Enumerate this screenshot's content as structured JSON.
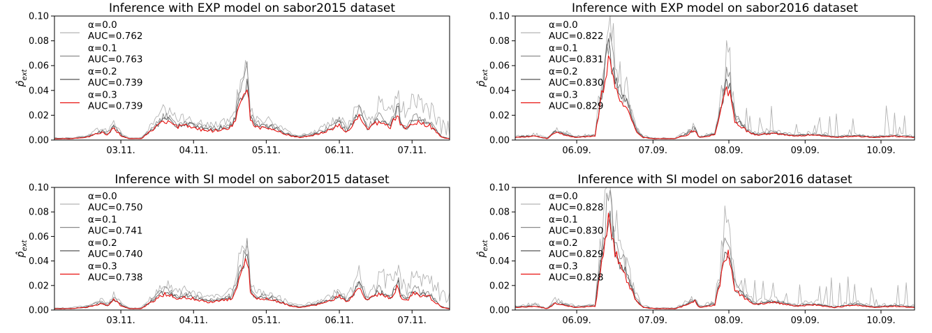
{
  "figure": {
    "palette": {
      "alpha0": "#b3b3b3",
      "alpha1": "#8c8c8c",
      "alpha2": "#555555",
      "alpha3": "#e8110f"
    }
  },
  "chart_data": [
    {
      "type": "line",
      "title": "Inference with EXP model on sabor2015 dataset",
      "ylabel": "p̂_ext",
      "ylim": [
        0,
        0.1
      ],
      "yticks": [
        "0.00",
        "0.02",
        "0.04",
        "0.06",
        "0.08",
        "0.10"
      ],
      "xtick_labels": [
        "03.11.",
        "04.11.",
        "05.11.",
        "06.11.",
        "07.11."
      ],
      "legend_position": "upper-left",
      "series": [
        {
          "label_alpha": "α=0.0",
          "label_auc": "AUC=0.762",
          "color": "#b3b3b3",
          "scale": 1.55,
          "noise": 0.35
        },
        {
          "label_alpha": "α=0.1",
          "label_auc": "AUC=0.763",
          "color": "#8c8c8c",
          "scale": 1.25,
          "noise": 0.22
        },
        {
          "label_alpha": "α=0.2",
          "label_auc": "AUC=0.739",
          "color": "#555555",
          "scale": 1.1,
          "noise": 0.12
        },
        {
          "label_alpha": "α=0.3",
          "label_auc": "AUC=0.739",
          "color": "#e8110f",
          "scale": 1.0,
          "noise": 0.0
        }
      ],
      "base_x": [
        0,
        0.04,
        0.08,
        0.12,
        0.135,
        0.15,
        0.17,
        0.19,
        0.22,
        0.265,
        0.28,
        0.31,
        0.34,
        0.37,
        0.4,
        0.45,
        0.49,
        0.495,
        0.51,
        0.55,
        0.58,
        0.6,
        0.62,
        0.66,
        0.7,
        0.72,
        0.74,
        0.76,
        0.77,
        0.79,
        0.82,
        0.85,
        0.87,
        0.875,
        0.89,
        0.91,
        0.95,
        0.98,
        1.0
      ],
      "base_y": [
        0.001,
        0.001,
        0.002,
        0.006,
        0.004,
        0.009,
        0.003,
        0.001,
        0.001,
        0.012,
        0.015,
        0.01,
        0.011,
        0.008,
        0.007,
        0.01,
        0.044,
        0.015,
        0.01,
        0.009,
        0.005,
        0.003,
        0.002,
        0.004,
        0.008,
        0.012,
        0.006,
        0.014,
        0.02,
        0.008,
        0.014,
        0.01,
        0.022,
        0.012,
        0.008,
        0.014,
        0.011,
        0.002,
        0.001
      ]
    },
    {
      "type": "line",
      "title": "Inference with EXP model on sabor2016 dataset",
      "ylabel": "p̂_ext",
      "ylim": [
        0,
        0.1
      ],
      "yticks": [
        "0.00",
        "0.02",
        "0.04",
        "0.06",
        "0.08",
        "0.10"
      ],
      "xtick_labels": [
        "06.09.",
        "07.09.",
        "08.09.",
        "09.09.",
        "10.09."
      ],
      "legend_position": "upper-left",
      "series": [
        {
          "label_alpha": "α=0.0",
          "label_auc": "AUC=0.822",
          "color": "#b3b3b3",
          "scale": 1.35,
          "noise": 0.8
        },
        {
          "label_alpha": "α=0.1",
          "label_auc": "AUC=0.831",
          "color": "#8c8c8c",
          "scale": 1.2,
          "noise": 0.25
        },
        {
          "label_alpha": "α=0.2",
          "label_auc": "AUC=0.830",
          "color": "#555555",
          "scale": 1.08,
          "noise": 0.12
        },
        {
          "label_alpha": "α=0.3",
          "label_auc": "AUC=0.829",
          "color": "#e8110f",
          "scale": 1.0,
          "noise": 0.0
        }
      ],
      "base_x": [
        0,
        0.05,
        0.08,
        0.1,
        0.15,
        0.2,
        0.235,
        0.245,
        0.26,
        0.28,
        0.3,
        0.32,
        0.35,
        0.4,
        0.43,
        0.45,
        0.46,
        0.5,
        0.53,
        0.54,
        0.55,
        0.58,
        0.6,
        0.65,
        0.7,
        0.75,
        0.8,
        0.85,
        0.9,
        0.95,
        1.0
      ],
      "base_y": [
        0.002,
        0.003,
        0.001,
        0.006,
        0.002,
        0.003,
        0.068,
        0.05,
        0.035,
        0.025,
        0.008,
        0.002,
        0.001,
        0.001,
        0.004,
        0.008,
        0.002,
        0.004,
        0.042,
        0.035,
        0.015,
        0.007,
        0.004,
        0.005,
        0.003,
        0.004,
        0.002,
        0.003,
        0.002,
        0.003,
        0.002
      ]
    },
    {
      "type": "line",
      "title": "Inference with SI model on sabor2015 dataset",
      "ylabel": "p̂_ext",
      "ylim": [
        0,
        0.1
      ],
      "yticks": [
        "0.00",
        "0.02",
        "0.04",
        "0.06",
        "0.08",
        "0.10"
      ],
      "xtick_labels": [
        "03.11.",
        "04.11.",
        "05.11.",
        "06.11.",
        "07.11."
      ],
      "legend_position": "upper-left",
      "series": [
        {
          "label_alpha": "α=0.0",
          "label_auc": "AUC=0.750",
          "color": "#b3b3b3",
          "scale": 1.55,
          "noise": 0.35
        },
        {
          "label_alpha": "α=0.1",
          "label_auc": "AUC=0.741",
          "color": "#8c8c8c",
          "scale": 1.25,
          "noise": 0.22
        },
        {
          "label_alpha": "α=0.2",
          "label_auc": "AUC=0.740",
          "color": "#555555",
          "scale": 1.1,
          "noise": 0.12
        },
        {
          "label_alpha": "α=0.3",
          "label_auc": "AUC=0.738",
          "color": "#e8110f",
          "scale": 1.0,
          "noise": 0.0
        }
      ],
      "base_x": [
        0,
        0.04,
        0.08,
        0.12,
        0.135,
        0.15,
        0.17,
        0.19,
        0.22,
        0.265,
        0.28,
        0.31,
        0.34,
        0.37,
        0.4,
        0.45,
        0.49,
        0.495,
        0.51,
        0.55,
        0.58,
        0.6,
        0.62,
        0.66,
        0.7,
        0.72,
        0.74,
        0.76,
        0.77,
        0.79,
        0.82,
        0.85,
        0.87,
        0.875,
        0.89,
        0.91,
        0.95,
        0.98,
        1.0
      ],
      "base_y": [
        0.001,
        0.001,
        0.002,
        0.005,
        0.003,
        0.008,
        0.003,
        0.001,
        0.001,
        0.01,
        0.013,
        0.009,
        0.01,
        0.007,
        0.006,
        0.009,
        0.042,
        0.014,
        0.009,
        0.008,
        0.005,
        0.003,
        0.002,
        0.004,
        0.007,
        0.011,
        0.006,
        0.013,
        0.019,
        0.007,
        0.013,
        0.009,
        0.02,
        0.011,
        0.007,
        0.013,
        0.01,
        0.002,
        0.001
      ]
    },
    {
      "type": "line",
      "title": "Inference with SI model on sabor2016 dataset",
      "ylabel": "p̂_ext",
      "ylim": [
        0,
        0.1
      ],
      "yticks": [
        "0.00",
        "0.02",
        "0.04",
        "0.06",
        "0.08",
        "0.10"
      ],
      "xtick_labels": [
        "06.09.",
        "07.09.",
        "08.09.",
        "09.09.",
        "10.09."
      ],
      "legend_position": "upper-left",
      "series": [
        {
          "label_alpha": "α=0.0",
          "label_auc": "AUC=0.828",
          "color": "#b3b3b3",
          "scale": 1.45,
          "noise": 0.8
        },
        {
          "label_alpha": "α=0.1",
          "label_auc": "AUC=0.830",
          "color": "#8c8c8c",
          "scale": 1.25,
          "noise": 0.25
        },
        {
          "label_alpha": "α=0.2",
          "label_auc": "AUC=0.829",
          "color": "#555555",
          "scale": 1.1,
          "noise": 0.12
        },
        {
          "label_alpha": "α=0.3",
          "label_auc": "AUC=0.828",
          "color": "#e8110f",
          "scale": 1.0,
          "noise": 0.0
        }
      ],
      "base_x": [
        0,
        0.05,
        0.08,
        0.1,
        0.15,
        0.2,
        0.235,
        0.245,
        0.26,
        0.28,
        0.3,
        0.32,
        0.35,
        0.4,
        0.43,
        0.45,
        0.46,
        0.5,
        0.53,
        0.54,
        0.55,
        0.58,
        0.6,
        0.65,
        0.7,
        0.75,
        0.8,
        0.85,
        0.9,
        0.95,
        1.0
      ],
      "base_y": [
        0.002,
        0.003,
        0.001,
        0.005,
        0.002,
        0.003,
        0.072,
        0.052,
        0.036,
        0.024,
        0.008,
        0.002,
        0.001,
        0.001,
        0.004,
        0.007,
        0.002,
        0.004,
        0.046,
        0.036,
        0.016,
        0.008,
        0.004,
        0.006,
        0.003,
        0.004,
        0.002,
        0.004,
        0.002,
        0.003,
        0.002
      ]
    }
  ]
}
